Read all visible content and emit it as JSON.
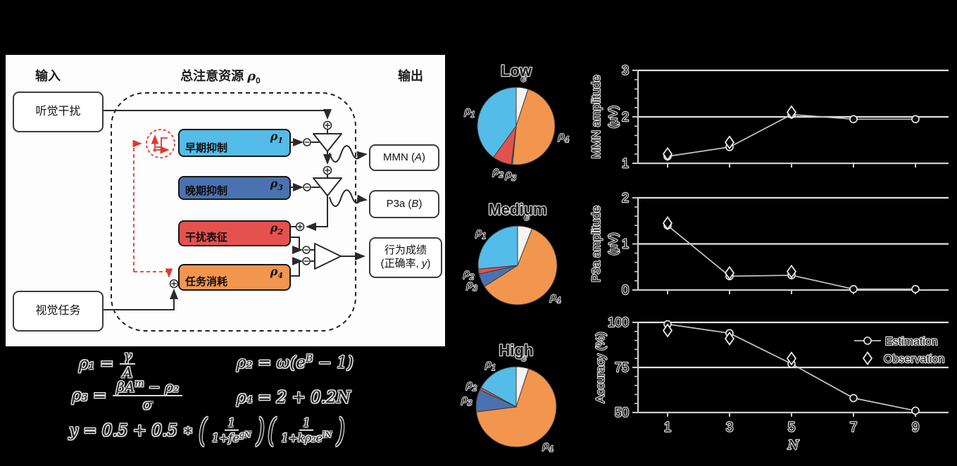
{
  "diagram": {
    "header_input": "输入",
    "header_pool_prefix": "总注意资源 ",
    "header_pool_symbol": "ρ",
    "header_pool_sub": "0",
    "header_output": "输出",
    "auditory_box": "听觉干扰",
    "visual_box": "视觉任务",
    "blocks": {
      "early": {
        "label": "早期抑制",
        "symbol": "ρ",
        "sub": "1"
      },
      "late": {
        "label": "晚期抑制",
        "symbol": "ρ",
        "sub": "3"
      },
      "interference": {
        "label": "干扰表征",
        "symbol": "ρ",
        "sub": "2"
      },
      "task": {
        "label": "任务消耗",
        "symbol": "ρ",
        "sub": "4"
      }
    },
    "outputs": {
      "mmn_pre": "MMN (",
      "mmn_var": "A",
      "mmn_post": ")",
      "p3a_pre": "P3a (",
      "p3a_var": "B",
      "p3a_post": ")",
      "behavior_line1": "行为成绩",
      "behavior_line2_pre": "(正确率, ",
      "behavior_var": "y",
      "behavior_post": ")"
    }
  },
  "equations": {
    "eq1": {
      "lhs": "ρ₁ =",
      "num": "γ",
      "den": "A"
    },
    "eq2": {
      "pre": "ρ₂ = ω(e",
      "sup": "B",
      "post": " − 1)"
    },
    "eq3": {
      "lhs": "ρ₃ =",
      "num_pre": "βA",
      "num_sup": "m",
      "num_post": " − ρ₂",
      "den": "σ"
    },
    "eq4": {
      "text": "ρ₄ = 2 + 0.2N"
    },
    "eq5": {
      "pre": "y = 0.5 + 0.5 ∗",
      "f1_num": "1",
      "f1_den_pre": "1+fe",
      "f1_den_sup": "gN",
      "f2_num": "1",
      "f2_den_pre": "1+kρ₂e",
      "f2_den_sup": "lN"
    }
  },
  "colors": {
    "early_inhibition": "#54BCE8",
    "late_inhibition": "#4B72B0",
    "interference_rep": "#E4524E",
    "task_consumption": "#F2954F",
    "pie_free": "#F4F4F2",
    "feedback_red": "#E0392F",
    "wire": "#2A2A2A"
  },
  "chart_data": [
    {
      "type": "pie",
      "title": "Low",
      "labels": [
        "ϵ",
        "ρ4",
        "ρ3",
        "ρ2",
        "ρ1"
      ],
      "values": [
        5,
        46.5,
        0.5,
        8,
        40
      ],
      "colors": [
        "#F4F4F2",
        "#F2954F",
        "#4B72B0",
        "#E4524E",
        "#54BCE8"
      ],
      "start_angle": "top",
      "direction": "clockwise"
    },
    {
      "type": "pie",
      "title": "Medium",
      "labels": [
        "ϵ",
        "ρ4",
        "ρ3",
        "ρ2",
        "ρ1"
      ],
      "values": [
        6,
        60,
        5.5,
        2,
        26.5
      ],
      "colors": [
        "#F4F4F2",
        "#F2954F",
        "#4B72B0",
        "#E4524E",
        "#54BCE8"
      ],
      "start_angle": "top",
      "direction": "clockwise"
    },
    {
      "type": "pie",
      "title": "High",
      "labels": [
        "ϵ",
        "ρ4",
        "ρ3",
        "ρ2",
        "ρ1"
      ],
      "values": [
        5,
        68,
        9,
        1,
        17
      ],
      "colors": [
        "#F4F4F2",
        "#F2954F",
        "#4B72B0",
        "#E4524E",
        "#54BCE8"
      ],
      "start_angle": "top",
      "direction": "clockwise"
    },
    {
      "type": "line",
      "ylabel_lines": [
        "MMN amplitude",
        "(μV)"
      ],
      "x": [
        1,
        3,
        5,
        7,
        9
      ],
      "ylim": [
        1,
        3
      ],
      "yticks": [
        "1",
        "2",
        "3"
      ],
      "show_x_tick_labels": false,
      "legend": false,
      "grid": true,
      "series": [
        {
          "name": "Estimation",
          "marker": "circle",
          "x": [
            1,
            3,
            5,
            7,
            9
          ],
          "values": [
            1.15,
            1.35,
            2.05,
            1.95,
            1.95
          ]
        },
        {
          "name": "Observation",
          "marker": "diamond",
          "x": [
            1,
            3,
            5
          ],
          "values": [
            1.2,
            1.45,
            2.1
          ]
        }
      ]
    },
    {
      "type": "line",
      "ylabel_lines": [
        "P3a amplitude",
        "(μV)"
      ],
      "x": [
        1,
        3,
        5,
        7,
        9
      ],
      "ylim": [
        0,
        2
      ],
      "yticks": [
        "0",
        "1",
        "2"
      ],
      "show_x_tick_labels": false,
      "legend": false,
      "grid": true,
      "series": [
        {
          "name": "Estimation",
          "marker": "circle",
          "x": [
            1,
            3,
            5,
            7,
            9
          ],
          "values": [
            1.4,
            0.3,
            0.32,
            0.02,
            0.02
          ]
        },
        {
          "name": "Observation",
          "marker": "diamond",
          "x": [
            1,
            3,
            5
          ],
          "values": [
            1.45,
            0.37,
            0.4
          ]
        }
      ]
    },
    {
      "type": "line",
      "ylabel_lines": [
        "Accuracy (%)"
      ],
      "x": [
        1,
        3,
        5,
        7,
        9
      ],
      "x_tick_labels": [
        "1",
        "3",
        "5",
        "7",
        "9"
      ],
      "xlabel": "N",
      "ylim": [
        50,
        100
      ],
      "yticks": [
        "50",
        "75",
        "100"
      ],
      "show_x_tick_labels": true,
      "legend": true,
      "grid": true,
      "series": [
        {
          "name": "Estimation",
          "marker": "circle",
          "x": [
            1,
            3,
            5,
            7,
            9
          ],
          "values": [
            99,
            94,
            77,
            58,
            51
          ]
        },
        {
          "name": "Observation",
          "marker": "diamond",
          "x": [
            1,
            3,
            5
          ],
          "values": [
            95.5,
            91,
            80
          ]
        }
      ]
    }
  ]
}
